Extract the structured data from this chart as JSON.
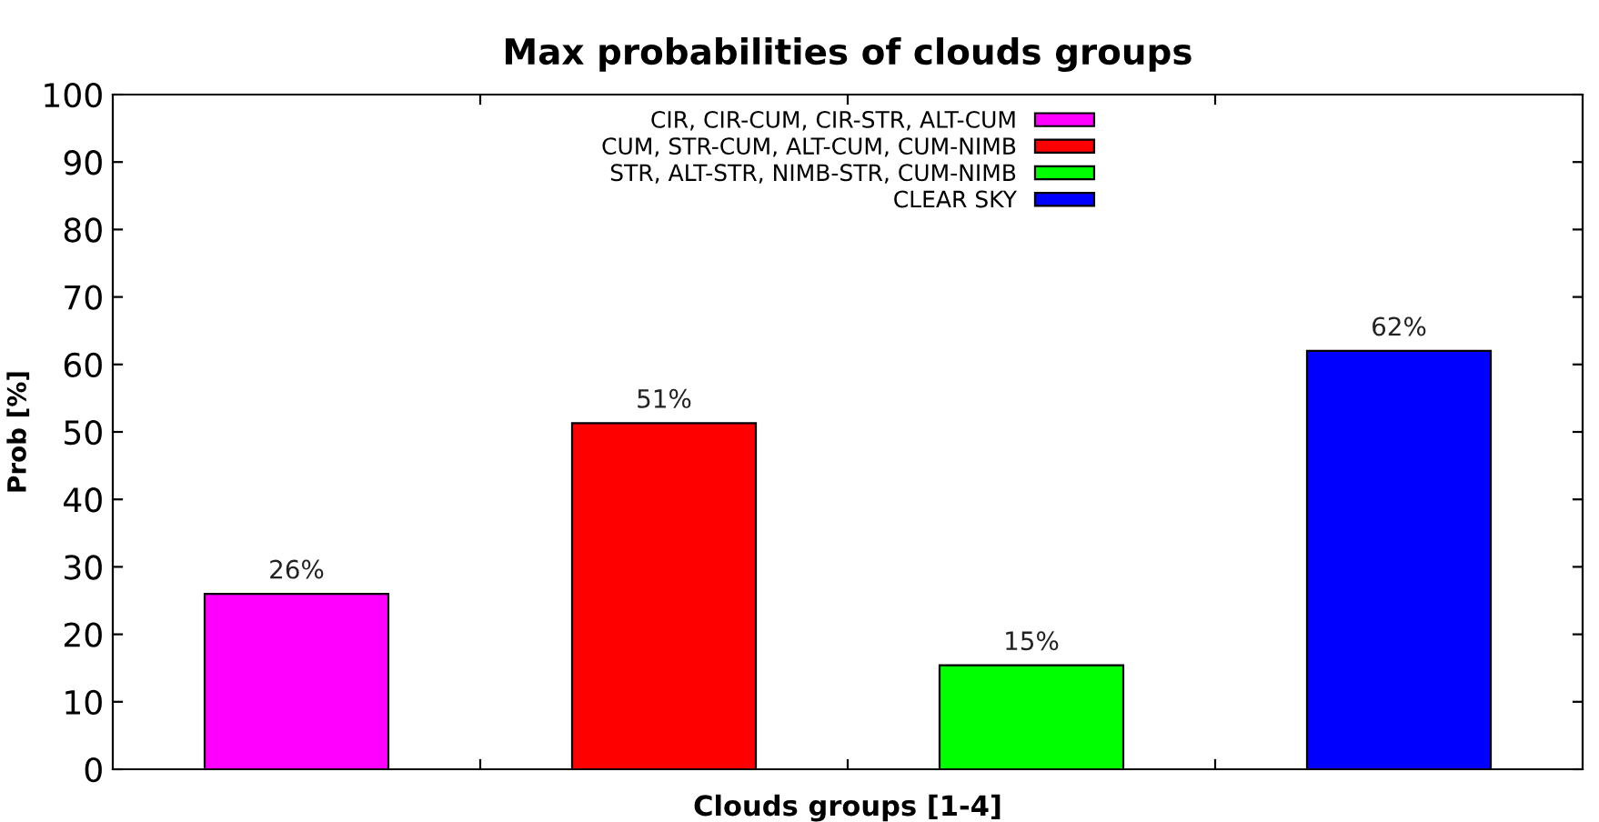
{
  "chart_data": {
    "type": "bar",
    "title": "Max probabilities of clouds groups",
    "xlabel": "Clouds groups [1-4]",
    "ylabel": "Prob [%]",
    "categories": [
      null,
      null,
      null,
      null
    ],
    "series": [
      {
        "name": "CIR, CIR-CUM, CIR-STR, ALT-CUM",
        "color": "#ff00ff",
        "values": [
          26,
          null,
          null,
          null
        ],
        "value_labels": [
          "26%",
          null,
          null,
          null
        ]
      },
      {
        "name": "CUM, STR-CUM, ALT-CUM, CUM-NIMB",
        "color": "#ff0000",
        "values": [
          null,
          51.3,
          null,
          null
        ],
        "value_labels": [
          null,
          "51%",
          null,
          null
        ]
      },
      {
        "name": "STR, ALT-STR, NIMB-STR, CUM-NIMB",
        "color": "#00ff00",
        "values": [
          null,
          null,
          15.4,
          null
        ],
        "value_labels": [
          null,
          null,
          "15%",
          null
        ]
      },
      {
        "name": "CLEAR SKY",
        "color": "#0000ff",
        "values": [
          null,
          null,
          null,
          62
        ],
        "value_labels": [
          null,
          null,
          null,
          "62%"
        ]
      }
    ],
    "ylim": [
      0,
      100
    ],
    "yticks": [
      0,
      10,
      20,
      30,
      40,
      50,
      60,
      70,
      80,
      90,
      100
    ],
    "grid": false,
    "legend": "top",
    "tick_labels": "y"
  }
}
